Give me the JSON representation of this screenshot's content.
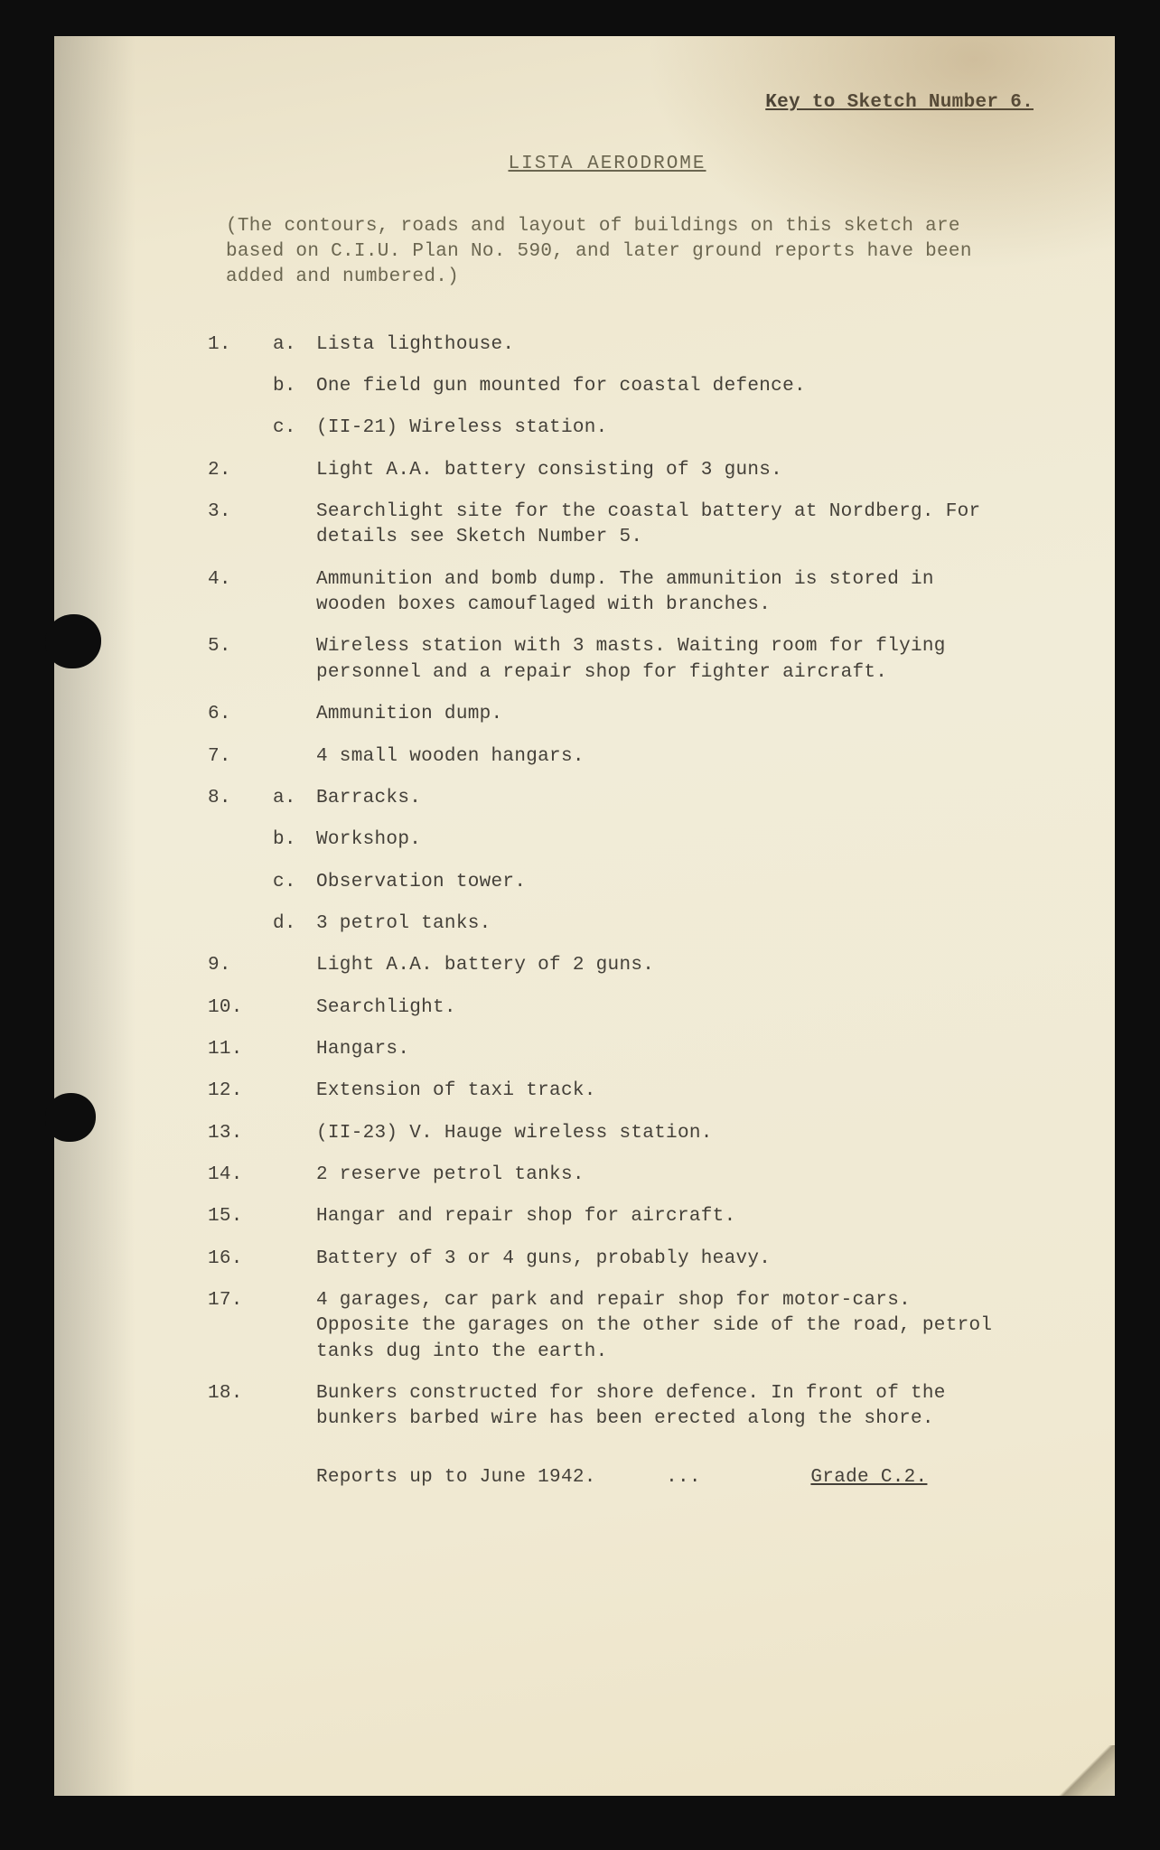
{
  "header": "Key to Sketch Number 6.",
  "title": "LISTA AERODROME",
  "intro": "(The contours, roads and layout of buildings on this sketch are based on C.I.U. Plan No. 590, and later ground reports have been added and numbered.)",
  "items": [
    {
      "num": "1.",
      "sub": "a.",
      "text": "Lista lighthouse."
    },
    {
      "num": "",
      "sub": "b.",
      "text": "One field gun mounted for coastal defence."
    },
    {
      "num": "",
      "sub": "c.",
      "text": "(II-21) Wireless station."
    },
    {
      "num": "2.",
      "sub": "",
      "text": "Light A.A. battery consisting of 3 guns."
    },
    {
      "num": "3.",
      "sub": "",
      "text": "Searchlight site for the coastal battery at Nordberg.  For details see Sketch Number 5."
    },
    {
      "num": "4.",
      "sub": "",
      "text": "Ammunition and bomb dump.  The ammunition is stored in wooden boxes camouflaged with branches."
    },
    {
      "num": "5.",
      "sub": "",
      "text": "Wireless station with 3 masts.  Waiting room for flying personnel and a repair shop for fighter aircraft."
    },
    {
      "num": "6.",
      "sub": "",
      "text": "Ammunition dump."
    },
    {
      "num": "7.",
      "sub": "",
      "text": "4 small wooden hangars."
    },
    {
      "num": "8.",
      "sub": "a.",
      "text": "Barracks."
    },
    {
      "num": "",
      "sub": "b.",
      "text": "Workshop."
    },
    {
      "num": "",
      "sub": "c.",
      "text": "Observation tower."
    },
    {
      "num": "",
      "sub": "d.",
      "text": "3 petrol tanks."
    },
    {
      "num": "9.",
      "sub": "",
      "text": "Light A.A. battery of 2 guns."
    },
    {
      "num": "10.",
      "sub": "",
      "text": "Searchlight."
    },
    {
      "num": "11.",
      "sub": "",
      "text": "Hangars."
    },
    {
      "num": "12.",
      "sub": "",
      "text": "Extension of taxi track."
    },
    {
      "num": "13.",
      "sub": "",
      "text": "(II-23) V. Hauge wireless station."
    },
    {
      "num": "14.",
      "sub": "",
      "text": "2 reserve petrol tanks."
    },
    {
      "num": "15.",
      "sub": "",
      "text": "Hangar and repair shop for aircraft."
    },
    {
      "num": "16.",
      "sub": "",
      "text": "Battery of 3 or 4 guns, probably heavy."
    },
    {
      "num": "17.",
      "sub": "",
      "text": "4 garages, car park and repair shop for motor-cars.  Opposite the garages on the other side of the road, petrol tanks dug into the earth."
    },
    {
      "num": "18.",
      "sub": "",
      "text": "Bunkers constructed for shore defence. In front of the bunkers barbed wire has been erected along the shore."
    }
  ],
  "footer_date": "Reports up to June 1942.",
  "footer_sep": "...",
  "footer_grade": "Grade C.2."
}
